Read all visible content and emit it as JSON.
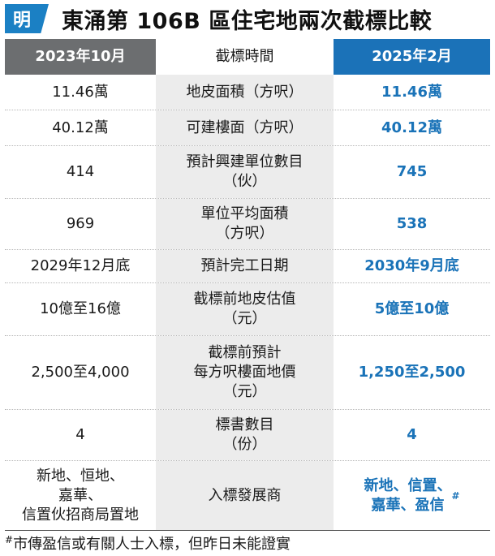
{
  "header": {
    "logo_text": "明",
    "title": "東涌第 106B 區住宅地兩次截標比較"
  },
  "table": {
    "columns": [
      "2023年10月",
      "截標時間",
      "2025年2月"
    ],
    "rows": [
      {
        "left": "11.46萬",
        "label": "地皮面積（方呎）",
        "right": "11.46萬"
      },
      {
        "left": "40.12萬",
        "label": "可建樓面（方呎）",
        "right": "40.12萬"
      },
      {
        "left": "414",
        "label": "預計興建單位數目\n（伙）",
        "right": "745"
      },
      {
        "left": "969",
        "label": "單位平均面積\n（方呎）",
        "right": "538"
      },
      {
        "left": "2029年12月底",
        "label": "預計完工日期",
        "right": "2030年9月底"
      },
      {
        "left": "10億至16億",
        "label": "截標前地皮估值\n（元）",
        "right": "5億至10億"
      },
      {
        "left": "2,500至4,000",
        "label": "截標前預計\n每方呎樓面地價\n（元）",
        "right": "1,250至2,500"
      },
      {
        "left": "4",
        "label": "標書數目\n（份）",
        "right": "4"
      },
      {
        "left": "新地、恒地、\n嘉華、\n信置伙招商局置地",
        "label": "入標發展商",
        "right": "新地、信置、\n嘉華、盈信"
      }
    ],
    "last_right_mark": "#"
  },
  "footnote": {
    "mark": "#",
    "text": "市傳盈信或有關人士入標，但昨日未能證實"
  },
  "colors": {
    "brand_blue": "#1b72b8",
    "header_gray": "#6c6e70",
    "label_bg": "#ececec"
  }
}
